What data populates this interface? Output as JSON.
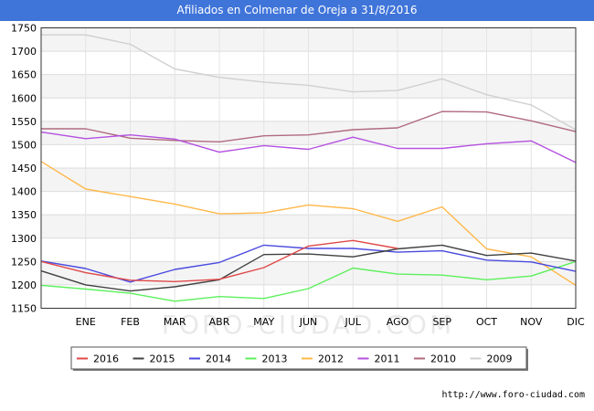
{
  "title": "Afiliados en Colmenar de Oreja a 31/8/2016",
  "watermark": "FORO-CIUDAD.COM",
  "source": "http://www.foro-ciudad.com",
  "chart_data": {
    "type": "line",
    "title": "Afiliados en Colmenar de Oreja a 31/8/2016",
    "categories": [
      "",
      "ENE",
      "FEB",
      "MAR",
      "ABR",
      "MAY",
      "JUN",
      "JUL",
      "AGO",
      "SEP",
      "OCT",
      "NOV",
      "DIC"
    ],
    "ylim": [
      1150,
      1750
    ],
    "yticks": [
      1150,
      1200,
      1250,
      1300,
      1350,
      1400,
      1450,
      1500,
      1550,
      1600,
      1650,
      1700,
      1750
    ],
    "grid": true,
    "legend_position": "bottom",
    "series": [
      {
        "name": "2009",
        "color": "#d0d0d0",
        "values": [
          1735,
          1735,
          1715,
          1662,
          1644,
          1634,
          1627,
          1613,
          1616,
          1641,
          1607,
          1585,
          1532
        ]
      },
      {
        "name": "2010",
        "color": "#b06a7e",
        "values": [
          1534,
          1534,
          1514,
          1509,
          1506,
          1519,
          1521,
          1532,
          1536,
          1571,
          1570,
          1551,
          1528
        ]
      },
      {
        "name": "2011",
        "color": "#b451e0",
        "values": [
          1527,
          1513,
          1521,
          1512,
          1484,
          1498,
          1490,
          1516,
          1492,
          1492,
          1502,
          1508,
          1462
        ]
      },
      {
        "name": "2012",
        "color": "#ffb84a",
        "values": [
          1464,
          1405,
          1389,
          1373,
          1352,
          1354,
          1371,
          1363,
          1336,
          1367,
          1277,
          1260,
          1199
        ]
      },
      {
        "name": "2013",
        "color": "#5cf05c",
        "values": [
          1199,
          1191,
          1182,
          1165,
          1175,
          1171,
          1192,
          1236,
          1223,
          1221,
          1211,
          1219,
          1250
        ]
      },
      {
        "name": "2014",
        "color": "#4a4ae0",
        "values": [
          1251,
          1235,
          1206,
          1233,
          1248,
          1285,
          1278,
          1278,
          1270,
          1273,
          1253,
          1249,
          1229
        ]
      },
      {
        "name": "2015",
        "color": "#404040",
        "values": [
          1230,
          1200,
          1187,
          1196,
          1211,
          1265,
          1266,
          1260,
          1277,
          1285,
          1263,
          1268,
          1251
        ]
      },
      {
        "name": "2016",
        "color": "#e04848",
        "values": [
          1250,
          1226,
          1210,
          1207,
          1212,
          1237,
          1283,
          1295,
          1278,
          null,
          null,
          null,
          null
        ]
      }
    ],
    "legend_order": [
      "2016",
      "2015",
      "2014",
      "2013",
      "2012",
      "2011",
      "2010",
      "2009"
    ]
  }
}
